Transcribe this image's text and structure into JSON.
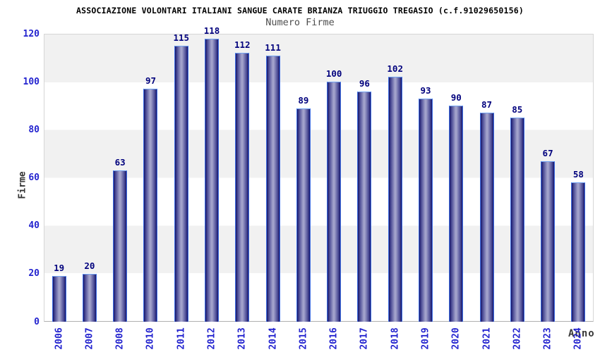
{
  "header": {
    "title": "ASSOCIAZIONE VOLONTARI ITALIANI SANGUE CARATE BRIANZA TRIUGGIO TREGASIO (c.f.91029650156)",
    "subtitle": "Numero Firme"
  },
  "chart_data": {
    "type": "bar",
    "title": "Numero Firme",
    "xlabel": "Anno",
    "ylabel": "Firme",
    "categories": [
      "2006",
      "2007",
      "2008",
      "2010",
      "2011",
      "2012",
      "2013",
      "2014",
      "2015",
      "2016",
      "2017",
      "2018",
      "2019",
      "2020",
      "2021",
      "2022",
      "2023",
      "2024"
    ],
    "values": [
      19,
      20,
      63,
      97,
      115,
      118,
      112,
      111,
      89,
      100,
      96,
      102,
      93,
      90,
      87,
      85,
      67,
      58
    ],
    "ylim": [
      0,
      120
    ],
    "yticks": [
      0,
      20,
      40,
      60,
      80,
      100,
      120
    ],
    "legend": "none",
    "grid": "alternating horizontal bands every 20 units",
    "colors": {
      "band_gray": "#f1f1f1",
      "band_white": "#ffffff",
      "bar_edge": "#3f6fe4",
      "bar_edge_top": "#74a4f2",
      "bar_dark": "#15156b",
      "bar_mid": "#4d4d96",
      "bar_light": "#a2a2cb",
      "tick_label": "#2424cf",
      "value_label": "#00007d",
      "title_color": "#000000",
      "subtitle_color": "#4d4d4d",
      "axis_label_color": "#3a3a3a"
    }
  }
}
